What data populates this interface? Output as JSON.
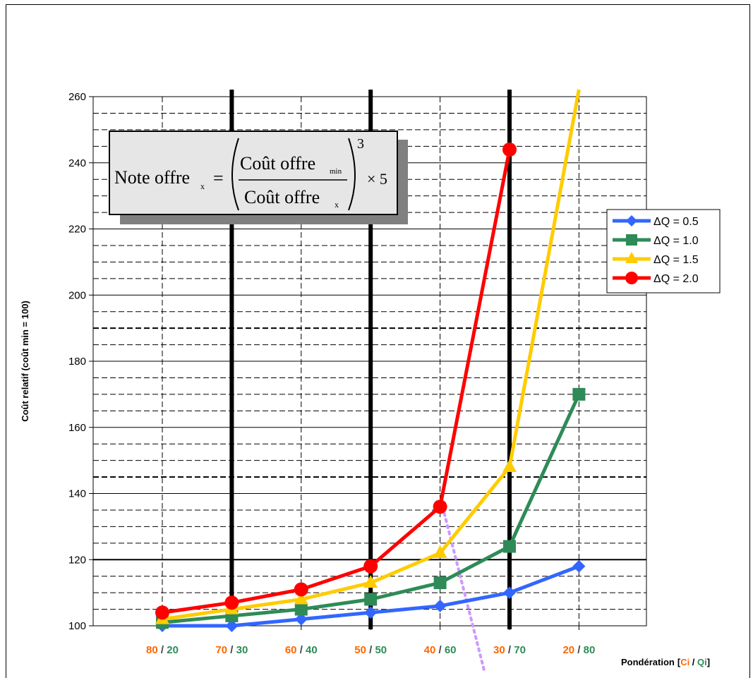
{
  "chart_data": {
    "type": "line",
    "ylabel": "Coût relatif (coût min = 100)",
    "xlabel": "Pondération",
    "xlabel_bracket": {
      "open": "[",
      "a": "Ci",
      "sep": " / ",
      "b": "Qi",
      "close": "]"
    },
    "ylim": [
      100,
      260
    ],
    "yticks": [
      "100",
      "120",
      "140",
      "160",
      "180",
      "200",
      "220",
      "240",
      "260"
    ],
    "categories": [
      {
        "a": "80",
        "sep": " / ",
        "b": "20"
      },
      {
        "a": "70",
        "sep": " / ",
        "b": "30"
      },
      {
        "a": "60",
        "sep": " / ",
        "b": "40"
      },
      {
        "a": "50",
        "sep": " / ",
        "b": "50"
      },
      {
        "a": "40",
        "sep": " / ",
        "b": "60"
      },
      {
        "a": "30",
        "sep": " / ",
        "b": "70"
      },
      {
        "a": "20",
        "sep": " / ",
        "b": "80"
      }
    ],
    "series": [
      {
        "name": "ΔQ = 0.5",
        "color": "#3366ff",
        "marker": "diamond",
        "values": [
          100,
          100,
          102,
          104,
          106,
          110,
          118
        ]
      },
      {
        "name": "ΔQ = 1.0",
        "color": "#2e8b57",
        "marker": "square",
        "values": [
          101,
          103,
          105,
          108,
          113,
          124,
          170
        ]
      },
      {
        "name": "ΔQ = 1.5",
        "color": "#ffcc00",
        "marker": "triangle",
        "values": [
          102,
          105,
          108,
          113,
          122,
          148,
          262
        ]
      },
      {
        "name": "ΔQ = 2.0",
        "color": "#ff0000",
        "marker": "circle",
        "values": [
          104,
          107,
          111,
          118,
          136,
          244,
          null
        ]
      }
    ],
    "thick_vertical_lines_at": [
      1,
      3,
      5
    ],
    "bold_gridlines_at": [
      120,
      145,
      190
    ],
    "grid": true,
    "legend_position": "right",
    "colors": {
      "ci": "#ff6600",
      "qi": "#2e8b57",
      "trend_line": "#cc99ff"
    },
    "annotation": {
      "note": "Note  offre",
      "sub_x": "x",
      "num": "Coût  offre",
      "num_sub": "min",
      "den": "Coût  offre",
      "den_sub": "x",
      "exp": "3",
      "tail": "× 5"
    }
  }
}
